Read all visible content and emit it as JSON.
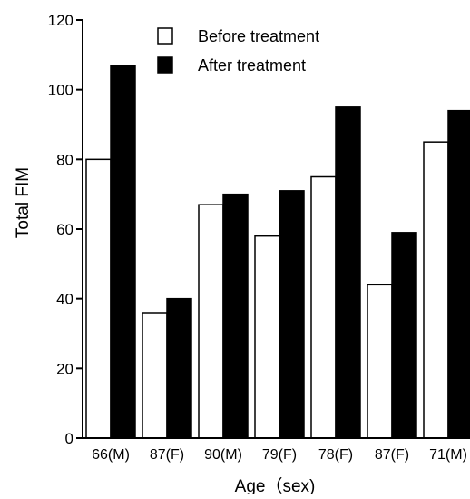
{
  "chart_data": {
    "type": "bar",
    "categories": [
      "66(M)",
      "87(F)",
      "90(M)",
      "79(F)",
      "78(F)",
      "87(F)",
      "71(M)"
    ],
    "series": [
      {
        "name": "Before treatment",
        "values": [
          80,
          36,
          67,
          58,
          75,
          44,
          85
        ],
        "fill": "#ffffff",
        "stroke": "#000000"
      },
      {
        "name": "After treatment",
        "values": [
          107,
          40,
          70,
          71,
          95,
          59,
          94
        ],
        "fill": "#000000",
        "stroke": "#000000"
      }
    ],
    "xlabel": "Age（sex)",
    "ylabel": "Total FIM",
    "ylim": [
      0,
      120
    ],
    "yticks": [
      0,
      20,
      40,
      60,
      80,
      100,
      120
    ],
    "grid": false,
    "legend_position": "top-center"
  }
}
